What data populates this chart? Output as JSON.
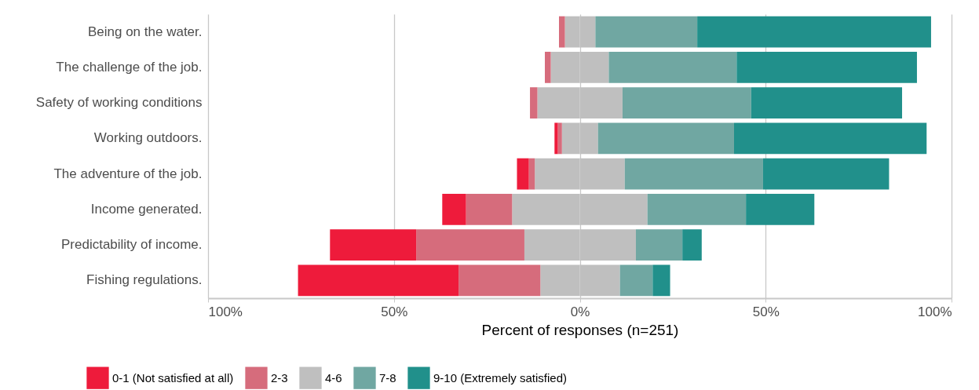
{
  "chart_data": {
    "type": "bar",
    "orientation": "horizontal",
    "stacked": true,
    "categories": [
      "Being on the water.",
      "The challenge of the job.",
      "Safety of working conditions",
      "Working outdoors.",
      "The adventure of the job.",
      "Income generated.",
      "Predictability of income.",
      "Fishing regulations."
    ],
    "series": [
      {
        "color": "#bfbfbf",
        "values": [
          -4.0,
          -7.8,
          -11.4,
          -4.8,
          -12.1,
          -18.2,
          -14.9,
          -10.6
        ]
      },
      {
        "name": "2-3",
        "color": "#d66c7c",
        "values": [
          -1.6,
          -1.6,
          -2.0,
          -1.1,
          -1.6,
          -12.4,
          -29.1,
          -22.0
        ]
      },
      {
        "name": "0-1 (Not satisfied at all)",
        "color": "#ee1b3b",
        "values": [
          null,
          null,
          null,
          -0.9,
          -3.2,
          -6.4,
          -23.2,
          -43.2
        ]
      },
      {
        "name": "4-6",
        "color": "#bfbfbf",
        "values": [
          4.2,
          7.8,
          11.5,
          4.9,
          12.1,
          18.2,
          15.1,
          10.8
        ]
      },
      {
        "name": "7-8",
        "color": "#70a7a2",
        "values": [
          27.4,
          34.4,
          34.6,
          36.6,
          37.2,
          26.5,
          12.5,
          8.8
        ]
      },
      {
        "name": "9-10 (Extremely satisfied)",
        "color": "#21908b",
        "values": [
          62.9,
          48.5,
          40.6,
          51.8,
          33.9,
          18.4,
          5.2,
          4.7
        ]
      }
    ],
    "xlabel": "Percent of responses (n=251)",
    "xlim": [
      -100,
      100
    ],
    "xticks": [
      {
        "value": -100,
        "label": "100%"
      },
      {
        "value": -50,
        "label": "50%"
      },
      {
        "value": 0,
        "label": "0%"
      },
      {
        "value": 50,
        "label": "50%"
      },
      {
        "value": 100,
        "label": "100%"
      }
    ],
    "grid": "x",
    "legend": "bottom"
  }
}
